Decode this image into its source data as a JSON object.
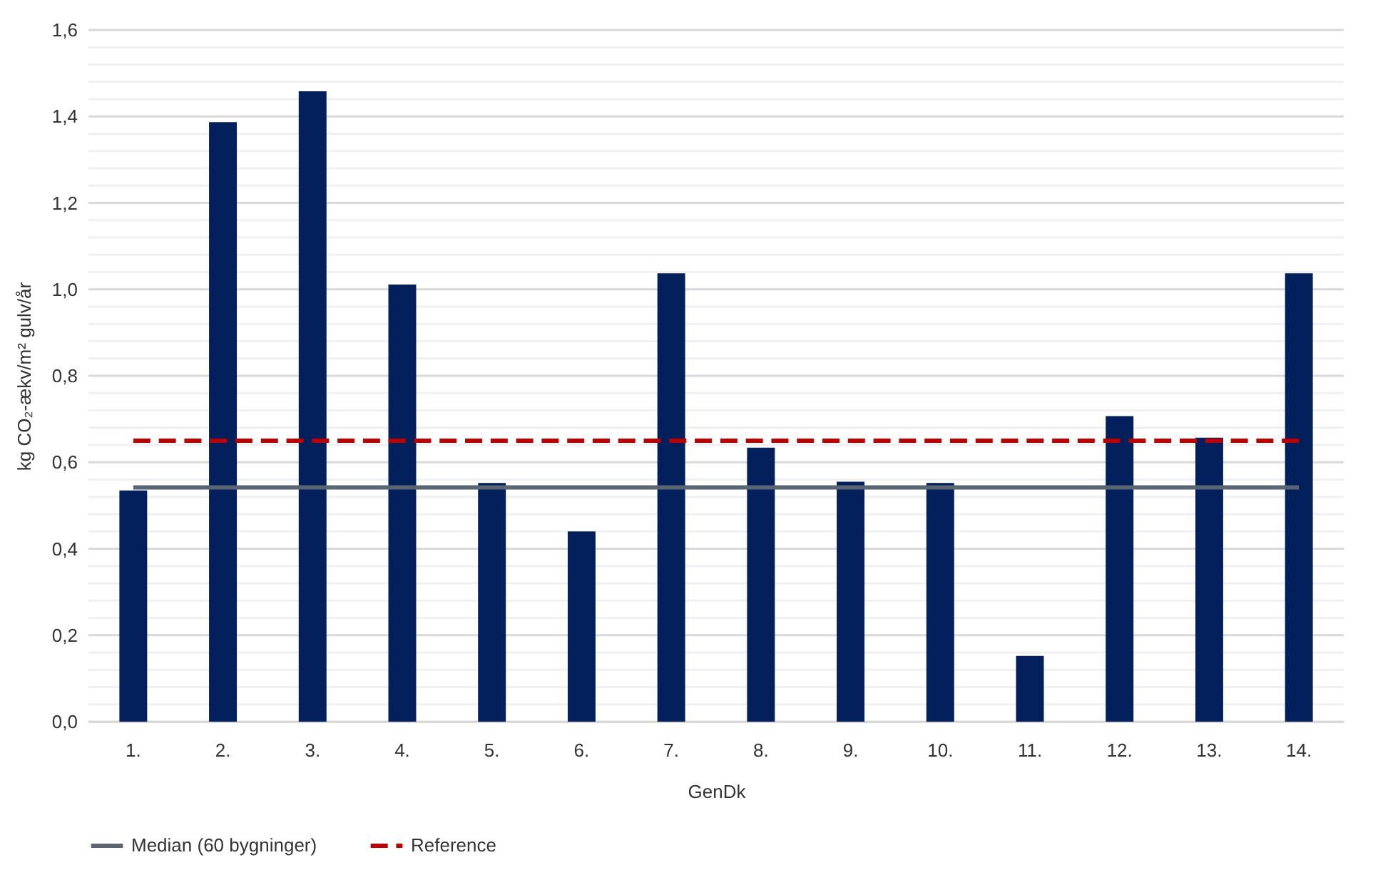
{
  "chart_data": {
    "type": "bar",
    "xlabel": "GenDk",
    "ylabel": "kg CO₂-ækv/m² gulv/år",
    "categories": [
      "1.",
      "2.",
      "3.",
      "4.",
      "5.",
      "6.",
      "7.",
      "8.",
      "9.",
      "10.",
      "11.",
      "12.",
      "13.",
      "14."
    ],
    "series": [
      {
        "color": "#03205d",
        "values": [
          0.535,
          1.387,
          1.458,
          1.011,
          0.552,
          0.44,
          1.037,
          0.634,
          0.555,
          0.552,
          0.152,
          0.707,
          0.657,
          1.037
        ]
      },
      {
        "type": "line",
        "name": "Median (60 bygninger)",
        "color": "#596570",
        "line_style": "solid",
        "values": [
          0.542,
          0.542,
          0.542,
          0.542,
          0.542,
          0.542,
          0.542,
          0.542,
          0.542,
          0.542,
          0.542,
          0.542,
          0.542,
          0.542
        ]
      },
      {
        "type": "line",
        "name": "Reference",
        "color": "#c00000",
        "line_style": "dashed",
        "values": [
          0.65,
          0.65,
          0.65,
          0.65,
          0.65,
          0.65,
          0.65,
          0.65,
          0.65,
          0.65,
          0.65,
          0.65,
          0.65,
          0.65
        ]
      }
    ],
    "ylim": [
      0,
      1.6
    ],
    "yticks": [
      {
        "value": 0,
        "label": "0,0"
      },
      {
        "value": 0.04,
        "label": null
      },
      {
        "value": 0.08,
        "label": null
      },
      {
        "value": 0.12,
        "label": null
      },
      {
        "value": 0.16,
        "label": null
      },
      {
        "value": 0.2,
        "label": "0,2"
      },
      {
        "value": 0.24,
        "label": null
      },
      {
        "value": 0.28,
        "label": null
      },
      {
        "value": 0.32,
        "label": null
      },
      {
        "value": 0.36,
        "label": null
      },
      {
        "value": 0.4,
        "label": "0,4"
      },
      {
        "value": 0.44,
        "label": null
      },
      {
        "value": 0.48,
        "label": null
      },
      {
        "value": 0.52,
        "label": null
      },
      {
        "value": 0.56,
        "label": null
      },
      {
        "value": 0.6,
        "label": "0,6"
      },
      {
        "value": 0.64,
        "label": null
      },
      {
        "value": 0.68,
        "label": null
      },
      {
        "value": 0.72,
        "label": null
      },
      {
        "value": 0.76,
        "label": null
      },
      {
        "value": 0.8,
        "label": "0,8"
      },
      {
        "value": 0.84,
        "label": null
      },
      {
        "value": 0.88,
        "label": null
      },
      {
        "value": 0.92,
        "label": null
      },
      {
        "value": 0.96,
        "label": null
      },
      {
        "value": 1.0,
        "label": "1,0"
      },
      {
        "value": 1.04,
        "label": null
      },
      {
        "value": 1.08,
        "label": null
      },
      {
        "value": 1.12,
        "label": null
      },
      {
        "value": 1.16,
        "label": null
      },
      {
        "value": 1.2,
        "label": "1,2"
      },
      {
        "value": 1.24,
        "label": null
      },
      {
        "value": 1.28,
        "label": null
      },
      {
        "value": 1.32,
        "label": null
      },
      {
        "value": 1.36,
        "label": null
      },
      {
        "value": 1.4,
        "label": "1,4"
      },
      {
        "value": 1.44,
        "label": null
      },
      {
        "value": 1.48,
        "label": null
      },
      {
        "value": 1.52,
        "label": null
      },
      {
        "value": 1.56,
        "label": null
      },
      {
        "value": 1.6,
        "label": "1,6"
      }
    ],
    "grid": "y",
    "legend": "bottom"
  }
}
